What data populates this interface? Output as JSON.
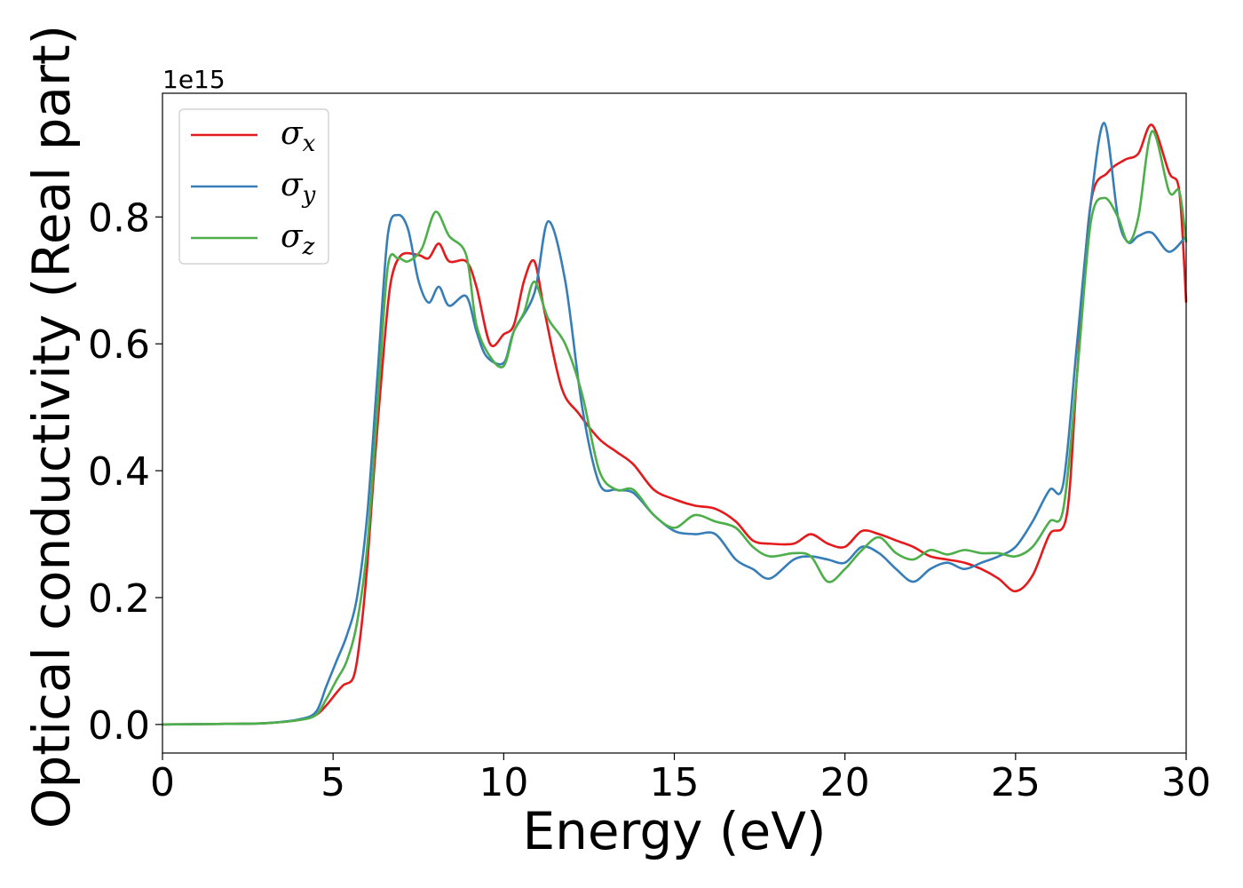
{
  "chart_data": {
    "type": "line",
    "title": "",
    "xlabel": "Energy (eV)",
    "ylabel": "Optical conductivity (Real part)",
    "y_offset_label": "1e15",
    "xlim": [
      0,
      30
    ],
    "ylim": [
      -0.045,
      0.995
    ],
    "x_ticks": [
      0,
      5,
      10,
      15,
      20,
      25,
      30
    ],
    "x_tick_labels": [
      "0",
      "5",
      "10",
      "15",
      "20",
      "25",
      "30"
    ],
    "y_ticks": [
      0.0,
      0.2,
      0.4,
      0.6,
      0.8
    ],
    "y_tick_labels": [
      "0.0",
      "0.2",
      "0.4",
      "0.6",
      "0.8"
    ],
    "grid": false,
    "legend_position": "top-left",
    "series": [
      {
        "name": "σx",
        "label_base": "σ",
        "label_sub": "x",
        "color": "#e41a1c",
        "points": [
          [
            0,
            0
          ],
          [
            2,
            0.001
          ],
          [
            3,
            0.002
          ],
          [
            4,
            0.007
          ],
          [
            4.5,
            0.015
          ],
          [
            4.8,
            0.03
          ],
          [
            5.1,
            0.05
          ],
          [
            5.3,
            0.062
          ],
          [
            5.6,
            0.075
          ],
          [
            5.8,
            0.14
          ],
          [
            6,
            0.25
          ],
          [
            6.2,
            0.4
          ],
          [
            6.5,
            0.6
          ],
          [
            6.7,
            0.7
          ],
          [
            7,
            0.74
          ],
          [
            7.5,
            0.74
          ],
          [
            7.8,
            0.735
          ],
          [
            8.1,
            0.758
          ],
          [
            8.4,
            0.73
          ],
          [
            8.9,
            0.73
          ],
          [
            9.2,
            0.69
          ],
          [
            9.6,
            0.6
          ],
          [
            10,
            0.615
          ],
          [
            10.3,
            0.63
          ],
          [
            10.6,
            0.7
          ],
          [
            10.9,
            0.73
          ],
          [
            11.2,
            0.65
          ],
          [
            11.7,
            0.53
          ],
          [
            12.2,
            0.49
          ],
          [
            12.8,
            0.45
          ],
          [
            13.3,
            0.43
          ],
          [
            13.8,
            0.41
          ],
          [
            14.4,
            0.37
          ],
          [
            15,
            0.355
          ],
          [
            15.6,
            0.345
          ],
          [
            16.2,
            0.34
          ],
          [
            16.8,
            0.32
          ],
          [
            17.3,
            0.29
          ],
          [
            17.8,
            0.285
          ],
          [
            18.5,
            0.285
          ],
          [
            19,
            0.3
          ],
          [
            19.5,
            0.285
          ],
          [
            20,
            0.28
          ],
          [
            20.5,
            0.305
          ],
          [
            21,
            0.3
          ],
          [
            21.5,
            0.29
          ],
          [
            22,
            0.28
          ],
          [
            22.5,
            0.265
          ],
          [
            23,
            0.26
          ],
          [
            23.5,
            0.255
          ],
          [
            24,
            0.245
          ],
          [
            24.5,
            0.23
          ],
          [
            25,
            0.21
          ],
          [
            25.5,
            0.235
          ],
          [
            26,
            0.3
          ],
          [
            26.5,
            0.33
          ],
          [
            26.8,
            0.55
          ],
          [
            27.2,
            0.82
          ],
          [
            27.7,
            0.87
          ],
          [
            28.2,
            0.89
          ],
          [
            28.6,
            0.9
          ],
          [
            29,
            0.945
          ],
          [
            29.5,
            0.87
          ],
          [
            29.8,
            0.84
          ],
          [
            30,
            0.665
          ]
        ]
      },
      {
        "name": "σy",
        "label_base": "σ",
        "label_sub": "y",
        "color": "#377eb8",
        "points": [
          [
            0,
            0
          ],
          [
            2,
            0.001
          ],
          [
            3,
            0.002
          ],
          [
            4,
            0.008
          ],
          [
            4.5,
            0.02
          ],
          [
            4.8,
            0.06
          ],
          [
            5.1,
            0.1
          ],
          [
            5.4,
            0.14
          ],
          [
            5.7,
            0.2
          ],
          [
            6,
            0.33
          ],
          [
            6.3,
            0.55
          ],
          [
            6.6,
            0.77
          ],
          [
            6.9,
            0.803
          ],
          [
            7.2,
            0.78
          ],
          [
            7.5,
            0.7
          ],
          [
            7.8,
            0.665
          ],
          [
            8.1,
            0.69
          ],
          [
            8.4,
            0.66
          ],
          [
            8.9,
            0.675
          ],
          [
            9.2,
            0.62
          ],
          [
            9.5,
            0.58
          ],
          [
            10,
            0.57
          ],
          [
            10.3,
            0.62
          ],
          [
            10.9,
            0.68
          ],
          [
            11.3,
            0.793
          ],
          [
            11.8,
            0.7
          ],
          [
            12.3,
            0.5
          ],
          [
            12.8,
            0.38
          ],
          [
            13.3,
            0.37
          ],
          [
            13.8,
            0.365
          ],
          [
            14.4,
            0.33
          ],
          [
            15,
            0.305
          ],
          [
            15.6,
            0.3
          ],
          [
            16.2,
            0.3
          ],
          [
            16.8,
            0.26
          ],
          [
            17.3,
            0.245
          ],
          [
            17.8,
            0.23
          ],
          [
            18.5,
            0.26
          ],
          [
            19,
            0.265
          ],
          [
            19.5,
            0.26
          ],
          [
            20,
            0.255
          ],
          [
            20.5,
            0.28
          ],
          [
            21,
            0.27
          ],
          [
            21.5,
            0.245
          ],
          [
            22,
            0.225
          ],
          [
            22.5,
            0.245
          ],
          [
            23,
            0.255
          ],
          [
            23.5,
            0.245
          ],
          [
            24,
            0.255
          ],
          [
            24.5,
            0.265
          ],
          [
            25,
            0.28
          ],
          [
            25.5,
            0.32
          ],
          [
            26,
            0.37
          ],
          [
            26.4,
            0.38
          ],
          [
            26.8,
            0.6
          ],
          [
            27.2,
            0.82
          ],
          [
            27.6,
            0.948
          ],
          [
            28,
            0.8
          ],
          [
            28.3,
            0.76
          ],
          [
            28.6,
            0.77
          ],
          [
            29,
            0.775
          ],
          [
            29.5,
            0.745
          ],
          [
            30,
            0.77
          ]
        ]
      },
      {
        "name": "σz",
        "label_base": "σ",
        "label_sub": "z",
        "color": "#4daf4a",
        "points": [
          [
            0,
            0
          ],
          [
            2,
            0.001
          ],
          [
            3,
            0.002
          ],
          [
            4,
            0.007
          ],
          [
            4.5,
            0.015
          ],
          [
            4.8,
            0.04
          ],
          [
            5.1,
            0.07
          ],
          [
            5.4,
            0.1
          ],
          [
            5.7,
            0.16
          ],
          [
            6,
            0.28
          ],
          [
            6.3,
            0.5
          ],
          [
            6.6,
            0.72
          ],
          [
            6.9,
            0.735
          ],
          [
            7.2,
            0.73
          ],
          [
            7.6,
            0.75
          ],
          [
            8,
            0.808
          ],
          [
            8.4,
            0.77
          ],
          [
            8.9,
            0.74
          ],
          [
            9.2,
            0.63
          ],
          [
            9.6,
            0.58
          ],
          [
            10,
            0.565
          ],
          [
            10.3,
            0.62
          ],
          [
            10.6,
            0.65
          ],
          [
            10.9,
            0.698
          ],
          [
            11.3,
            0.64
          ],
          [
            11.8,
            0.6
          ],
          [
            12.3,
            0.52
          ],
          [
            12.8,
            0.4
          ],
          [
            13.3,
            0.37
          ],
          [
            13.8,
            0.37
          ],
          [
            14.4,
            0.33
          ],
          [
            15,
            0.31
          ],
          [
            15.6,
            0.33
          ],
          [
            16.2,
            0.32
          ],
          [
            16.8,
            0.31
          ],
          [
            17.3,
            0.28
          ],
          [
            17.8,
            0.265
          ],
          [
            18.5,
            0.27
          ],
          [
            19,
            0.265
          ],
          [
            19.5,
            0.225
          ],
          [
            20,
            0.245
          ],
          [
            20.5,
            0.275
          ],
          [
            21,
            0.295
          ],
          [
            21.5,
            0.27
          ],
          [
            22,
            0.26
          ],
          [
            22.5,
            0.275
          ],
          [
            23,
            0.268
          ],
          [
            23.5,
            0.275
          ],
          [
            24,
            0.27
          ],
          [
            24.5,
            0.27
          ],
          [
            25,
            0.265
          ],
          [
            25.5,
            0.28
          ],
          [
            26,
            0.32
          ],
          [
            26.4,
            0.34
          ],
          [
            26.8,
            0.55
          ],
          [
            27.2,
            0.79
          ],
          [
            27.6,
            0.83
          ],
          [
            28,
            0.8
          ],
          [
            28.3,
            0.76
          ],
          [
            28.6,
            0.8
          ],
          [
            29,
            0.935
          ],
          [
            29.5,
            0.84
          ],
          [
            29.8,
            0.84
          ],
          [
            30,
            0.76
          ]
        ]
      }
    ]
  }
}
